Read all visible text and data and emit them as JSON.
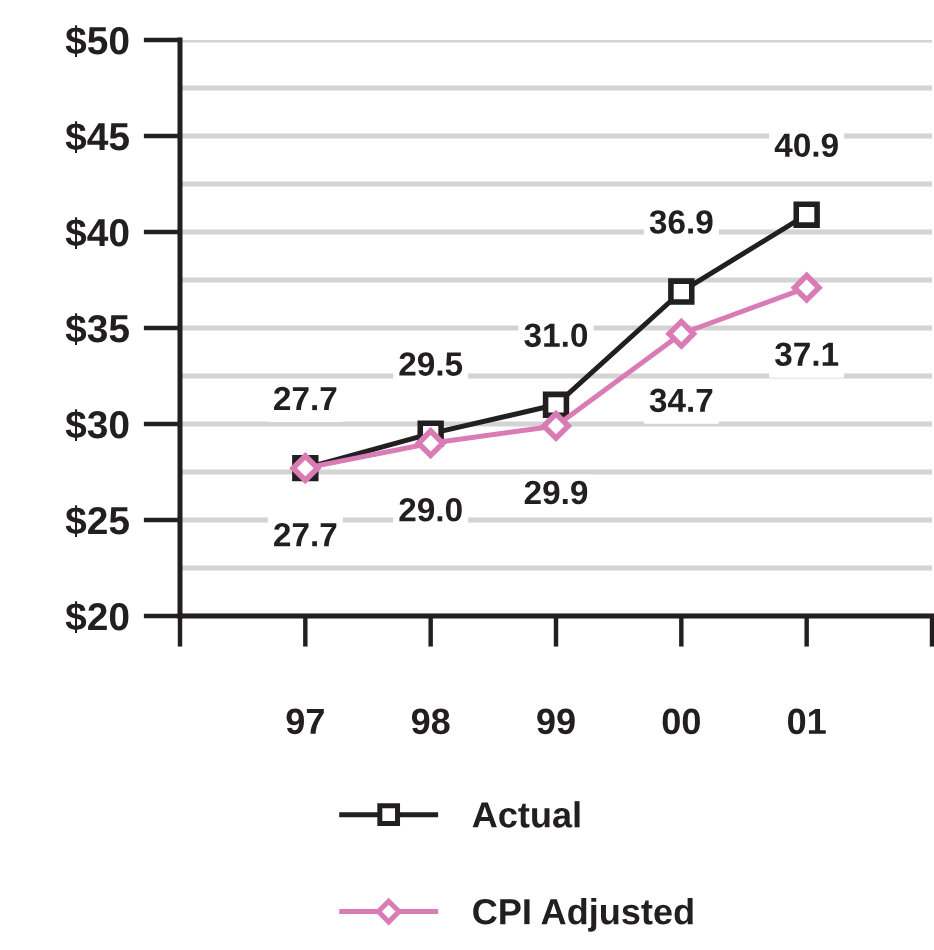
{
  "chart_data": {
    "type": "line",
    "categories": [
      "97",
      "98",
      "99",
      "00",
      "01"
    ],
    "series": [
      {
        "name": "Actual",
        "color": "#231f20",
        "values": [
          27.7,
          29.5,
          31.0,
          36.9,
          40.9
        ],
        "value_labels": [
          "27.7",
          "29.5",
          "31.0",
          "36.9",
          "40.9"
        ],
        "marker": "square"
      },
      {
        "name": "CPI Adjusted",
        "color": "#d97bb4",
        "values": [
          27.7,
          29.0,
          29.9,
          34.7,
          37.1
        ],
        "value_labels": [
          "27.7",
          "29.0",
          "29.9",
          "34.7",
          "37.1"
        ],
        "marker": "diamond"
      }
    ],
    "ylim": [
      20,
      50
    ],
    "yticks": [
      {
        "value": 20,
        "label": "$20"
      },
      {
        "value": 22.5,
        "label": null
      },
      {
        "value": 25,
        "label": "$25"
      },
      {
        "value": 27.5,
        "label": null
      },
      {
        "value": 30,
        "label": "$30"
      },
      {
        "value": 32.5,
        "label": null
      },
      {
        "value": 35,
        "label": "$35"
      },
      {
        "value": 37.5,
        "label": null
      },
      {
        "value": 40,
        "label": "$40"
      },
      {
        "value": 42.5,
        "label": null
      },
      {
        "value": 45,
        "label": "$45"
      },
      {
        "value": 47.5,
        "label": null
      },
      {
        "value": 50,
        "label": "$50"
      }
    ],
    "grid": "y",
    "legend": "bottom"
  }
}
